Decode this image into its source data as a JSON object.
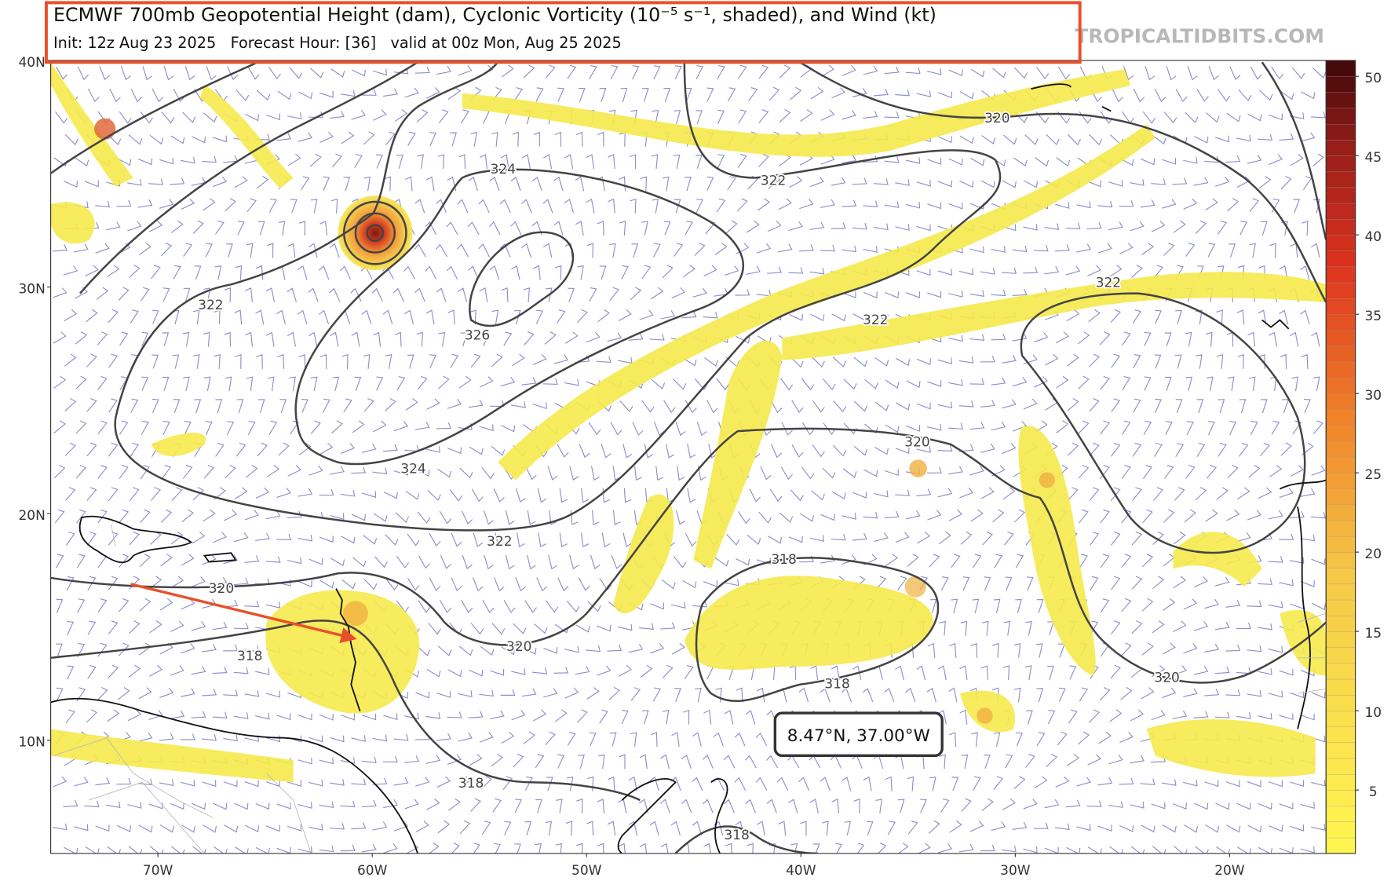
{
  "header": {
    "title": "ECMWF 700mb Geopotential Height (dam), Cyclonic Vorticity (10⁻⁵ s⁻¹, shaded), and Wind (kt)",
    "subtitle": "Init: 12z Aug 23 2025   Forecast Hour: [36]   valid at 00z Mon, Aug 25 2025",
    "watermark": "TROPICALTIDBITS.COM"
  },
  "map": {
    "lon_range": [
      -75,
      -15.5
    ],
    "lat_range": [
      5,
      40
    ],
    "lat_ticks": [
      {
        "value": 40,
        "label": "40N"
      },
      {
        "value": 30,
        "label": "30N"
      },
      {
        "value": 20,
        "label": "20N"
      },
      {
        "value": 10,
        "label": "10N"
      }
    ],
    "lon_ticks": [
      {
        "value": -70,
        "label": "70W"
      },
      {
        "value": -60,
        "label": "60W"
      },
      {
        "value": -50,
        "label": "50W"
      },
      {
        "value": -40,
        "label": "40W"
      },
      {
        "value": -30,
        "label": "30W"
      },
      {
        "value": -20,
        "label": "20W"
      }
    ],
    "contour_labels": [
      "322",
      "324",
      "326",
      "324",
      "322",
      "320",
      "322",
      "322",
      "320",
      "322",
      "320",
      "318",
      "320",
      "318",
      "318",
      "318",
      "318",
      "320"
    ]
  },
  "colorbar": {
    "range": [
      1,
      51
    ],
    "ticks": [
      5,
      10,
      15,
      20,
      25,
      30,
      35,
      40,
      45,
      50
    ]
  },
  "tooltip": "8.47°N, 37.00°W"
}
